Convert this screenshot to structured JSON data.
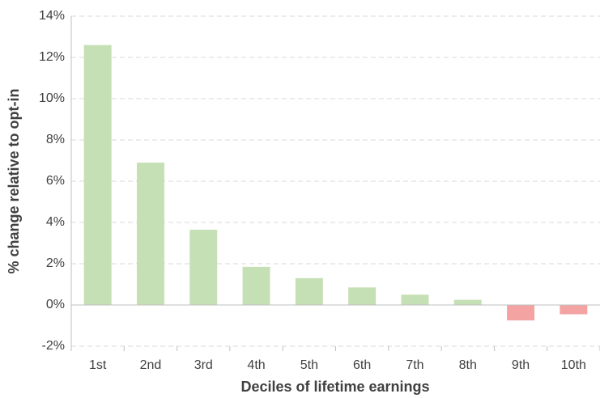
{
  "chart_data": {
    "type": "bar",
    "xlabel": "Deciles of lifetime earnings",
    "ylabel": "% change relative to opt-in",
    "categories": [
      "1st",
      "2nd",
      "3rd",
      "4th",
      "5th",
      "6th",
      "7th",
      "8th",
      "9th",
      "10th"
    ],
    "values": [
      12.6,
      6.9,
      3.65,
      1.85,
      1.3,
      0.85,
      0.5,
      0.25,
      -0.75,
      -0.45
    ],
    "colors": [
      "#c5e0b4",
      "#c5e0b4",
      "#c5e0b4",
      "#c5e0b4",
      "#c5e0b4",
      "#c5e0b4",
      "#c5e0b4",
      "#c5e0b4",
      "#f4a3a3",
      "#f4a3a3"
    ],
    "ylim": [
      -2,
      14
    ],
    "yticks": [
      {
        "value": -2,
        "label": "-2%"
      },
      {
        "value": 0,
        "label": "0%"
      },
      {
        "value": 2,
        "label": "2%"
      },
      {
        "value": 4,
        "label": "4%"
      },
      {
        "value": 6,
        "label": "6%"
      },
      {
        "value": 8,
        "label": "8%"
      },
      {
        "value": 10,
        "label": "10%"
      },
      {
        "value": 12,
        "label": "12%"
      },
      {
        "value": 14,
        "label": "14%"
      }
    ],
    "grid": true
  }
}
